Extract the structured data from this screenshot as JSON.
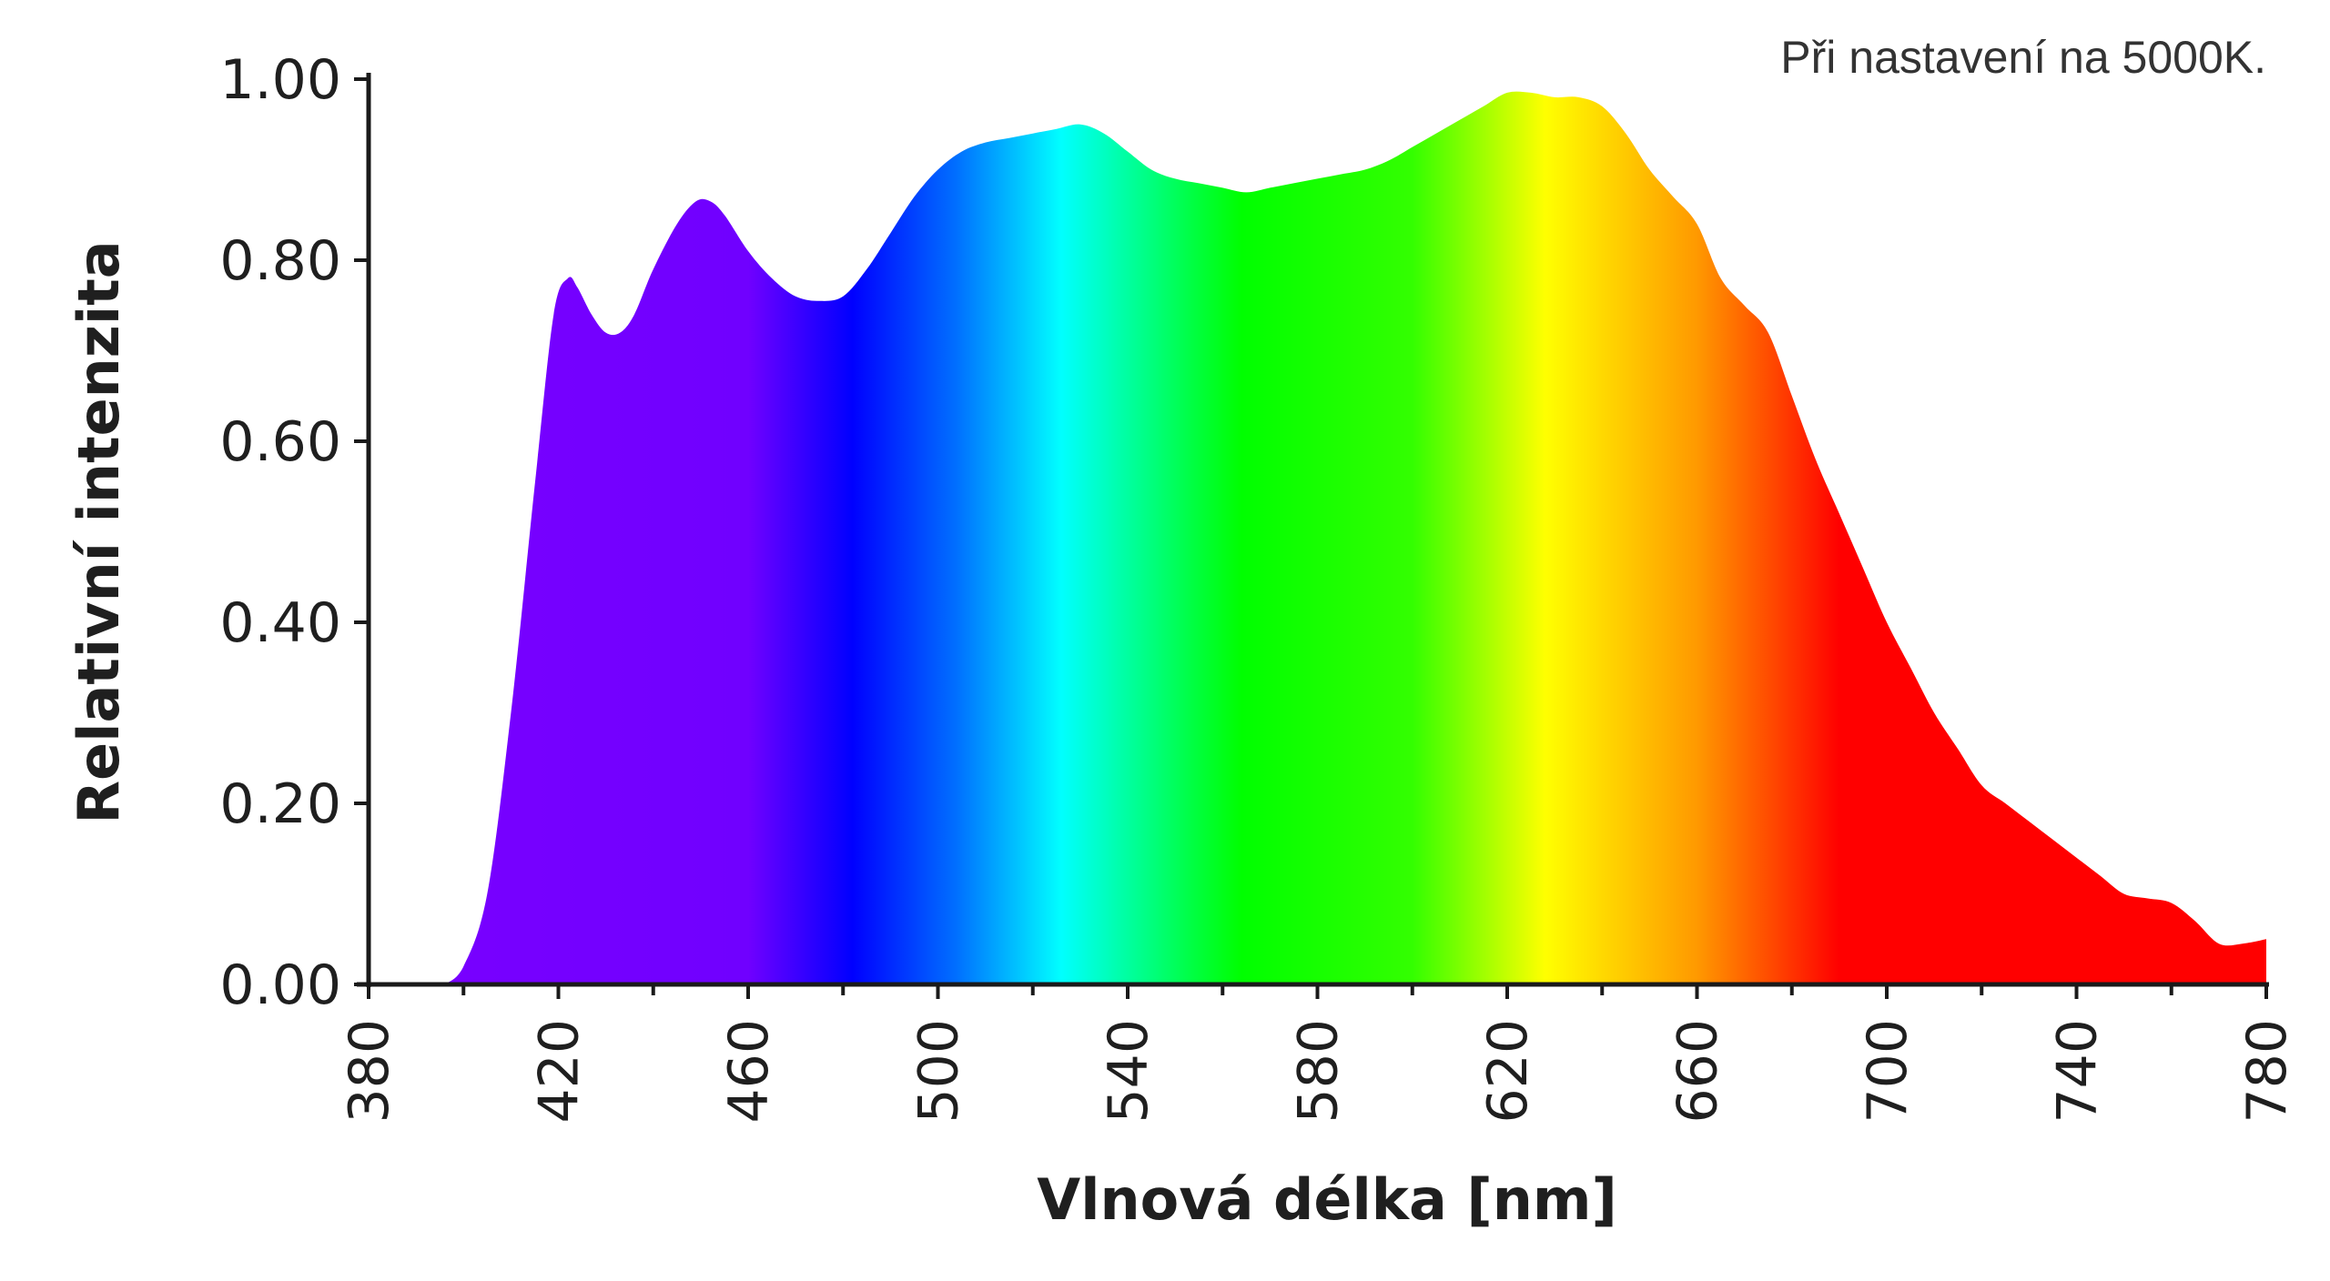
{
  "note": "Při nastavení na 5000K.",
  "chart_data": {
    "type": "area",
    "xlabel": "Vlnová délka [nm]",
    "ylabel": "Relativní intenzita",
    "xlim": [
      380,
      780
    ],
    "ylim": [
      0,
      1
    ],
    "x_ticks": [
      "380",
      "420",
      "460",
      "500",
      "540",
      "580",
      "620",
      "660",
      "700",
      "740",
      "780"
    ],
    "y_ticks": [
      "0.00",
      "0.20",
      "0.40",
      "0.60",
      "0.80",
      "1.00"
    ],
    "fill": "visible-spectrum gradient",
    "series": [
      {
        "x": [
          396,
          400,
          405,
          410,
          415,
          419,
          422,
          424,
          427,
          430,
          433,
          436,
          440,
          445,
          449,
          452,
          455,
          460,
          465,
          470,
          475,
          480,
          485,
          490,
          495,
          500,
          505,
          510,
          515,
          520,
          525,
          530,
          535,
          540,
          545,
          550,
          555,
          560,
          565,
          570,
          575,
          580,
          585,
          590,
          595,
          600,
          605,
          610,
          615,
          620,
          625,
          630,
          635,
          640,
          645,
          650,
          655,
          660,
          665,
          670,
          675,
          680,
          685,
          690,
          695,
          700,
          705,
          710,
          715,
          720,
          725,
          730,
          735,
          740,
          745,
          750,
          755,
          760,
          765,
          770,
          775,
          780
        ],
        "y": [
          0.0,
          0.02,
          0.1,
          0.3,
          0.55,
          0.74,
          0.78,
          0.77,
          0.74,
          0.72,
          0.72,
          0.74,
          0.79,
          0.84,
          0.865,
          0.865,
          0.85,
          0.81,
          0.78,
          0.76,
          0.755,
          0.76,
          0.79,
          0.83,
          0.87,
          0.9,
          0.92,
          0.93,
          0.935,
          0.94,
          0.945,
          0.95,
          0.94,
          0.92,
          0.9,
          0.89,
          0.885,
          0.88,
          0.875,
          0.88,
          0.885,
          0.89,
          0.895,
          0.9,
          0.91,
          0.925,
          0.94,
          0.955,
          0.97,
          0.985,
          0.985,
          0.98,
          0.98,
          0.97,
          0.94,
          0.9,
          0.87,
          0.84,
          0.78,
          0.75,
          0.72,
          0.65,
          0.58,
          0.52,
          0.46,
          0.4,
          0.35,
          0.3,
          0.26,
          0.22,
          0.2,
          0.18,
          0.16,
          0.14,
          0.12,
          0.1,
          0.095,
          0.09,
          0.07,
          0.045,
          0.045,
          0.05
        ]
      }
    ]
  }
}
